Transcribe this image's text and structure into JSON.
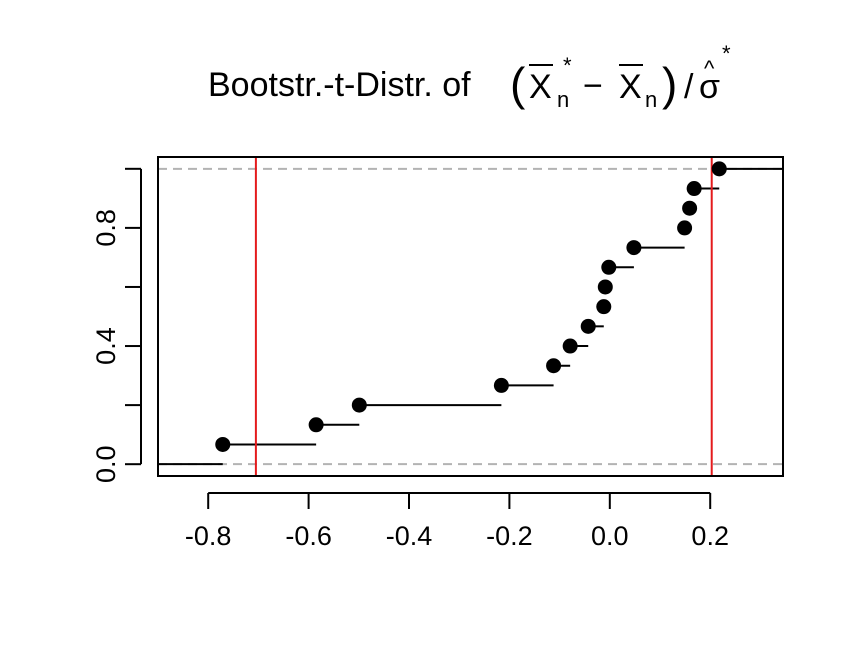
{
  "chart_data": {
    "type": "step",
    "title": {
      "prefix": "Bootstr.-t-Distr. of",
      "xbar": "X",
      "sub_n": "n",
      "star": "*",
      "minus": "−",
      "sigma": "σ",
      "hat": "^",
      "open": "(",
      "close": ")",
      "slash": "/"
    },
    "xlabel": "",
    "ylabel": "",
    "xlim": [
      -0.9,
      0.345
    ],
    "ylim": [
      -0.04,
      1.04
    ],
    "x_ticks": [
      -0.8,
      -0.6,
      -0.4,
      -0.2,
      0.0,
      0.2
    ],
    "x_tick_labels": [
      "-0.8",
      "-0.6",
      "-0.4",
      "-0.2",
      "0.0",
      "0.2"
    ],
    "y_ticks": [
      0.0,
      0.2,
      0.4,
      0.6,
      0.8,
      1.0
    ],
    "y_tick_labels": [
      "0.0",
      "",
      "0.4",
      "",
      "0.8",
      ""
    ],
    "grid": false,
    "points": [
      {
        "x": -0.771,
        "y": 0.0667
      },
      {
        "x": -0.585,
        "y": 0.1333
      },
      {
        "x": -0.499,
        "y": 0.2
      },
      {
        "x": -0.216,
        "y": 0.2667
      },
      {
        "x": -0.112,
        "y": 0.3333
      },
      {
        "x": -0.079,
        "y": 0.4
      },
      {
        "x": -0.043,
        "y": 0.4667
      },
      {
        "x": -0.012,
        "y": 0.5333
      },
      {
        "x": -0.009,
        "y": 0.6
      },
      {
        "x": -0.002,
        "y": 0.6667
      },
      {
        "x": 0.048,
        "y": 0.7333
      },
      {
        "x": 0.149,
        "y": 0.8
      },
      {
        "x": 0.159,
        "y": 0.8667
      },
      {
        "x": 0.168,
        "y": 0.9333
      },
      {
        "x": 0.218,
        "y": 1.0
      }
    ],
    "reference_lines_y": [
      0.0,
      1.0
    ],
    "vertical_lines_x": [
      -0.705,
      0.203
    ],
    "colors": {
      "steps": "#000000",
      "points": "#000000",
      "reference": "#b3b3b3",
      "vertical": "#e41a1c",
      "frame": "#000000"
    }
  }
}
